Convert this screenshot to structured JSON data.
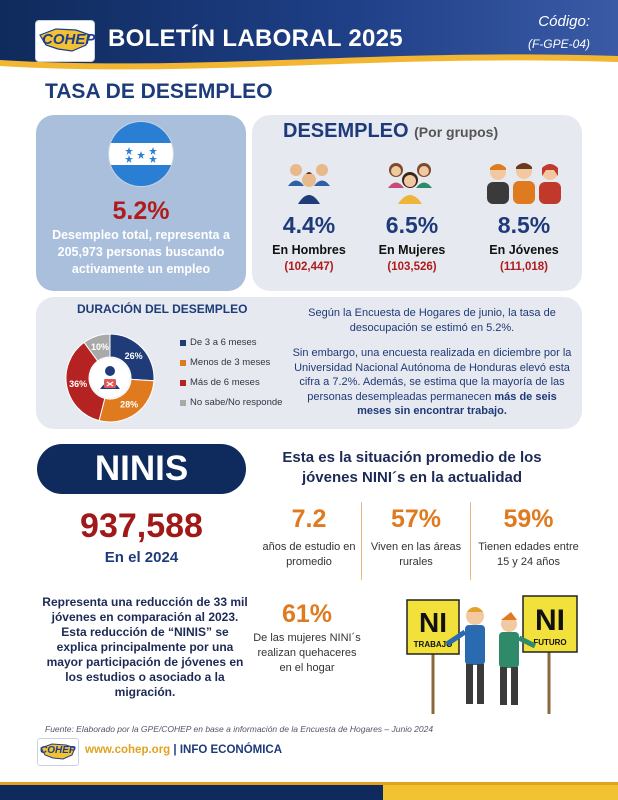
{
  "header": {
    "logo_text": "COHEP",
    "title": "BOLETÍN LABORAL 2025",
    "code_label": "Código:",
    "code_value": "(F-GPE-04)"
  },
  "section_title": "TASA DE DESEMPLEO",
  "total": {
    "value": "5.2%",
    "description": "Desempleo total, representa a 205,973 personas buscando activamente un empleo"
  },
  "groups": {
    "title": "DESEMPLEO",
    "subtitle": "(Por grupos)",
    "items": [
      {
        "pct": "4.4%",
        "label": "En Hombres",
        "count": "(102,447)",
        "icon": "men-group-icon"
      },
      {
        "pct": "6.5%",
        "label": "En Mujeres",
        "count": "(103,526)",
        "icon": "women-group-icon"
      },
      {
        "pct": "8.5%",
        "label": "En Jóvenes",
        "count": "(111,018)",
        "icon": "youth-group-icon"
      }
    ]
  },
  "duration": {
    "title": "DURACIÓN DEL DESEMPLEO",
    "legend": [
      "De 3 a 6 meses",
      "Menos de 3 meses",
      "Más de 6 meses",
      "No sabe/No responde"
    ],
    "paragraph1": "Según la Encuesta de Hogares de junio, la tasa de desocupación se estimó en 5.2%.",
    "paragraph2_start": "Sin embargo, una encuesta realizada en diciembre por la Universidad Nacional Autónoma de Honduras elevó esta cifra a 7.2%. Además, se estima que la mayoría de las personas desempleadas permanecen ",
    "paragraph2_bold": "más de seis meses sin encontrar trabajo."
  },
  "chart_data": {
    "type": "pie",
    "categories": [
      "De 3 a 6 meses",
      "Menos de 3 meses",
      "Más de 6 meses",
      "No sabe/No responde"
    ],
    "values": [
      26,
      28,
      36,
      10
    ],
    "labels": [
      "26%",
      "28%",
      "36%",
      "10%"
    ],
    "colors": [
      "#1f3b78",
      "#e07a1f",
      "#b52222",
      "#a9a9a9"
    ],
    "legend_position": "right"
  },
  "ninis": {
    "title": "NINIS",
    "number": "937,588",
    "year": "En el 2024",
    "description": "Representa una reducción de 33 mil jóvenes en comparación al 2023. Esta reducción de “NINIS” se explica principalmente por una mayor participación de jóvenes en los estudios o asociado a la migración."
  },
  "situation": {
    "title": "Esta es la situación promedio de los jóvenes NINI´s en la actualidad",
    "stats": [
      {
        "value": "7.2",
        "label": "años de estudio en promedio"
      },
      {
        "value": "57%",
        "label": "Viven en las áreas rurales"
      },
      {
        "value": "59%",
        "label": "Tienen edades entre 15 y 24 años"
      },
      {
        "value": "61%",
        "label": "De las mujeres NINI´s realizan quehaceres en el hogar"
      }
    ],
    "sign_left_big": "NI",
    "sign_left_small": "TRABAJO",
    "sign_right_big": "NI",
    "sign_right_small": "FUTURO"
  },
  "source": "Fuente: Elaborado por la GPE/COHEP en base a información de la Encuesta de Hogares – Junio 2024",
  "footer": {
    "logo_text": "COHEP",
    "website": "www.cohep.org",
    "separator": " | ",
    "label": "INFO ECONÓMICA"
  }
}
